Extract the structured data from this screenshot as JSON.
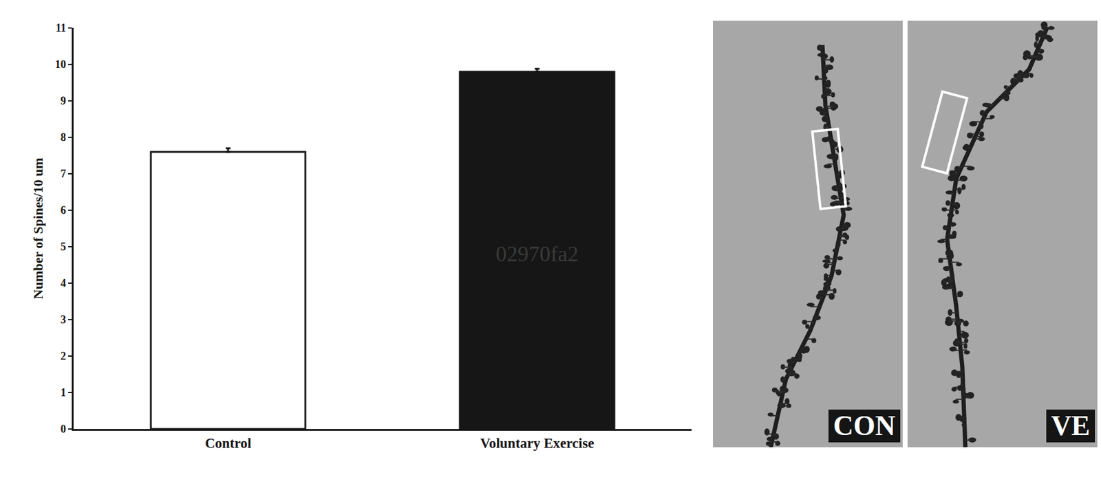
{
  "chart_data": {
    "type": "bar",
    "categories": [
      "Control",
      "Voluntary Exercise"
    ],
    "values": [
      7.6,
      9.8
    ],
    "errors": [
      0.1,
      0.08
    ],
    "colors": [
      "#ffffff",
      "#161616"
    ],
    "ylabel": "Number of Spines/10 um",
    "ylim": [
      0,
      11
    ],
    "yticks": [
      0,
      1,
      2,
      3,
      4,
      5,
      6,
      7,
      8,
      9,
      10,
      11
    ],
    "grid": false,
    "annotations": [
      {
        "text": "02970fa2",
        "category": "Voluntary Exercise",
        "y": 4.8
      }
    ]
  },
  "panels": [
    {
      "label": "CON"
    },
    {
      "label": "VE"
    }
  ]
}
